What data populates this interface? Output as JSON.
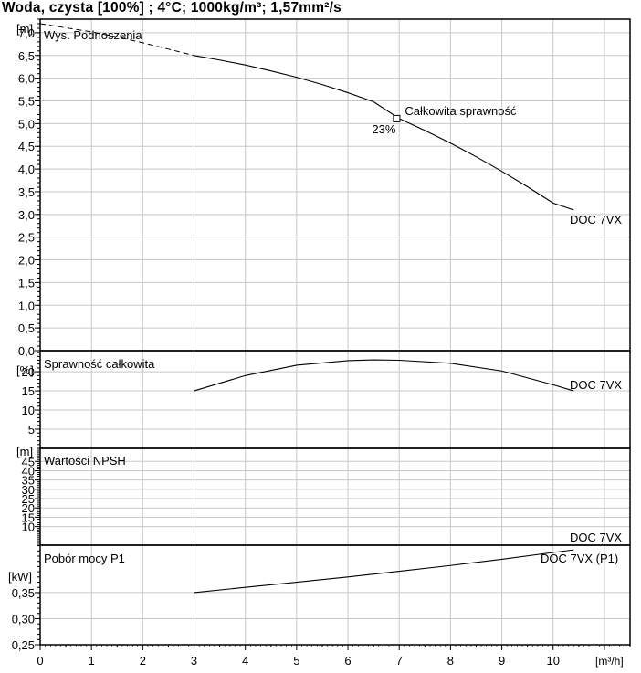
{
  "title": "Woda, czysta [100%] ; 4°C; 1000kg/m³; 1,57mm²/s",
  "x_axis": {
    "unit": "[m³/h]",
    "ticks": [
      "0",
      "1",
      "2",
      "3",
      "4",
      "5",
      "6",
      "7",
      "8",
      "9",
      "10"
    ],
    "range": [
      0,
      11.5
    ]
  },
  "chart_data": [
    {
      "type": "line",
      "title": "Wys. Podnoszenia",
      "unit": "[m]",
      "ylim": [
        0,
        7.3
      ],
      "ticks": [
        "0,0",
        "0,5",
        "1,0",
        "1,5",
        "2,0",
        "2,5",
        "3,0",
        "3,5",
        "4,0",
        "4,5",
        "5,0",
        "5,5",
        "6,0",
        "6,5",
        "7,0"
      ],
      "grid": true,
      "series": [
        {
          "name": "DOC 7VX",
          "x": [
            3.0,
            3.5,
            4.0,
            4.5,
            5.0,
            5.5,
            6.0,
            6.5,
            7.0,
            7.5,
            8.0,
            8.5,
            9.0,
            9.5,
            10.0,
            10.4
          ],
          "y": [
            6.5,
            6.4,
            6.29,
            6.16,
            6.02,
            5.86,
            5.68,
            5.48,
            5.11,
            4.85,
            4.57,
            4.27,
            3.95,
            3.61,
            3.25,
            3.1
          ]
        }
      ],
      "extrapolation": {
        "x": [
          0,
          0.5,
          1.0,
          1.5,
          2.0,
          2.5,
          3.0
        ],
        "y": [
          7.2,
          7.11,
          7.02,
          6.91,
          6.78,
          6.64,
          6.5
        ]
      },
      "operating_point": {
        "x": 6.95,
        "y": 5.11,
        "label": "Całkowita sprawność",
        "value_label": "23%"
      }
    },
    {
      "type": "line",
      "title": "Sprawność całkowita",
      "unit": "[%]",
      "ylim": [
        0,
        25.5
      ],
      "ticks": [
        "5",
        "10",
        "15",
        "20"
      ],
      "grid": true,
      "series": [
        {
          "name": "DOC 7VX",
          "x": [
            3.0,
            4.0,
            5.0,
            6.0,
            6.5,
            7.0,
            8.0,
            9.0,
            10.0,
            10.4
          ],
          "y": [
            15.0,
            19.0,
            21.7,
            22.9,
            23.1,
            23.0,
            22.2,
            20.2,
            16.6,
            15.0
          ]
        }
      ]
    },
    {
      "type": "line",
      "title": "Wartości NPSH",
      "unit": "[m]",
      "ylim": [
        0,
        52
      ],
      "ticks": [
        "10",
        "15",
        "20",
        "25",
        "30",
        "35",
        "40",
        "45"
      ],
      "grid": true,
      "series": [
        {
          "name": "DOC 7VX",
          "x": [],
          "y": []
        }
      ]
    },
    {
      "type": "line",
      "title": "Pobór mocy P1",
      "unit": "[kW]",
      "ylim": [
        0.25,
        0.441
      ],
      "ticks": [
        "0,25",
        "0,30",
        "0,35"
      ],
      "grid": true,
      "series": [
        {
          "name": "DOC 7VX (P1)",
          "x": [
            3.0,
            4.0,
            5.0,
            6.0,
            7.0,
            8.0,
            9.0,
            10.0,
            10.4
          ],
          "y": [
            0.35,
            0.36,
            0.37,
            0.38,
            0.391,
            0.402,
            0.414,
            0.427,
            0.432
          ]
        }
      ]
    }
  ]
}
